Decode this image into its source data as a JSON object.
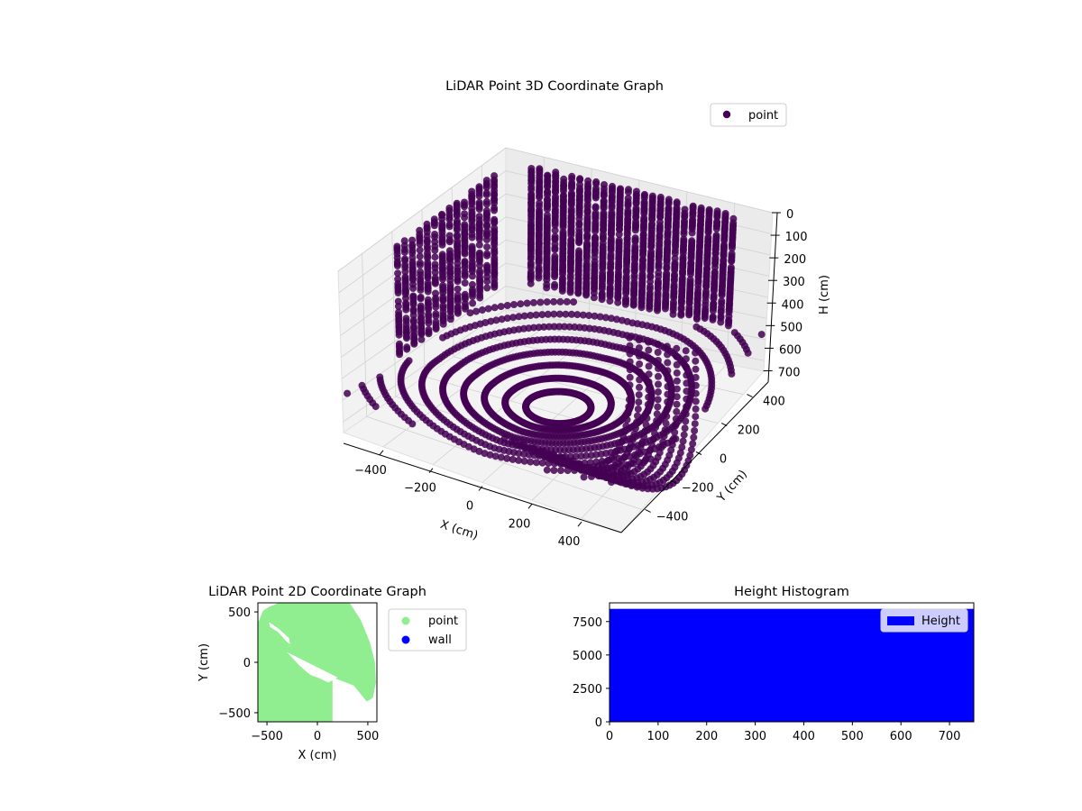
{
  "chart_data": [
    {
      "type": "scatter",
      "projection": "3d",
      "title": "LiDAR Point 3D Coordinate Graph",
      "xlabel": "X (cm)",
      "ylabel": "Y (cm)",
      "zlabel": "H (cm)",
      "xlim": [
        -560,
        560
      ],
      "ylim": [
        -560,
        560
      ],
      "zlim": [
        0,
        750
      ],
      "z_inverted": true,
      "xticks": [
        -400,
        -200,
        0,
        200,
        400
      ],
      "xtick_labels": [
        "−400",
        "−200",
        "0",
        "200",
        "400"
      ],
      "yticks": [
        -400,
        -200,
        0,
        200,
        400
      ],
      "ytick_labels": [
        "−400",
        "−200",
        "0",
        "200",
        "400"
      ],
      "zticks": [
        0,
        100,
        200,
        300,
        400,
        500,
        600,
        700
      ],
      "ztick_labels": [
        "0",
        "100",
        "200",
        "300",
        "400",
        "500",
        "600",
        "700"
      ],
      "grid": true,
      "legend": {
        "position": "top-right"
      },
      "series": [
        {
          "name": "point",
          "color": "#440154"
        }
      ],
      "scan": {
        "room_half_x": 560,
        "room_half_y": 560,
        "sensor_height": 720,
        "wall_top": 0,
        "rings": 14,
        "columns": 26
      }
    },
    {
      "type": "scatter",
      "title": "LiDAR Point 2D Coordinate Graph",
      "xlabel": "X (cm)",
      "ylabel": "Y (cm)",
      "xlim": [
        -590,
        590
      ],
      "ylim": [
        -590,
        590
      ],
      "xticks": [
        -500,
        0,
        500
      ],
      "xtick_labels": [
        "−500",
        "0",
        "500"
      ],
      "yticks": [
        -500,
        0,
        500
      ],
      "ytick_labels": [
        "−500",
        "0",
        "500"
      ],
      "legend": {
        "position": "outside-right"
      },
      "series": [
        {
          "name": "point",
          "color": "#90ee90"
        },
        {
          "name": "wall",
          "color": "#0000ff"
        }
      ],
      "coverage_region": [
        [
          -580,
          410
        ],
        [
          -540,
          510
        ],
        [
          -480,
          550
        ],
        [
          -380,
          590
        ],
        [
          320,
          590
        ],
        [
          430,
          420
        ],
        [
          520,
          200
        ],
        [
          570,
          0
        ],
        [
          580,
          -200
        ],
        [
          550,
          -350
        ],
        [
          490,
          -390
        ],
        [
          360,
          -230
        ],
        [
          150,
          -150
        ],
        [
          150,
          -590
        ],
        [
          -590,
          -590
        ],
        [
          -590,
          410
        ]
      ],
      "gaps": [
        [
          [
            -300,
            100
          ],
          [
            -180,
            -30
          ],
          [
            -90,
            -110
          ],
          [
            -60,
            -130
          ],
          [
            0,
            -150
          ],
          [
            110,
            -200
          ],
          [
            200,
            -150
          ]
        ],
        [
          [
            -480,
            400
          ],
          [
            -470,
            350
          ],
          [
            -390,
            300
          ],
          [
            -300,
            200
          ],
          [
            -270,
            180
          ],
          [
            -280,
            240
          ],
          [
            -380,
            330
          ]
        ]
      ]
    },
    {
      "type": "bar",
      "title": "Height Histogram",
      "xlabel": "",
      "ylabel": "",
      "xlim": [
        0,
        750
      ],
      "ylim": [
        0,
        8900
      ],
      "xticks": [
        0,
        100,
        200,
        300,
        400,
        500,
        600,
        700
      ],
      "xtick_labels": [
        "0",
        "100",
        "200",
        "300",
        "400",
        "500",
        "600",
        "700"
      ],
      "yticks": [
        0,
        2500,
        5000,
        7500
      ],
      "ytick_labels": [
        "0",
        "2500",
        "5000",
        "7500"
      ],
      "legend": {
        "position": "top-right"
      },
      "series": [
        {
          "name": "Height",
          "color": "#0000ff",
          "bins_start": 0,
          "bin_width": 1,
          "bins": 750,
          "count_per_bin": 8450
        }
      ]
    }
  ]
}
